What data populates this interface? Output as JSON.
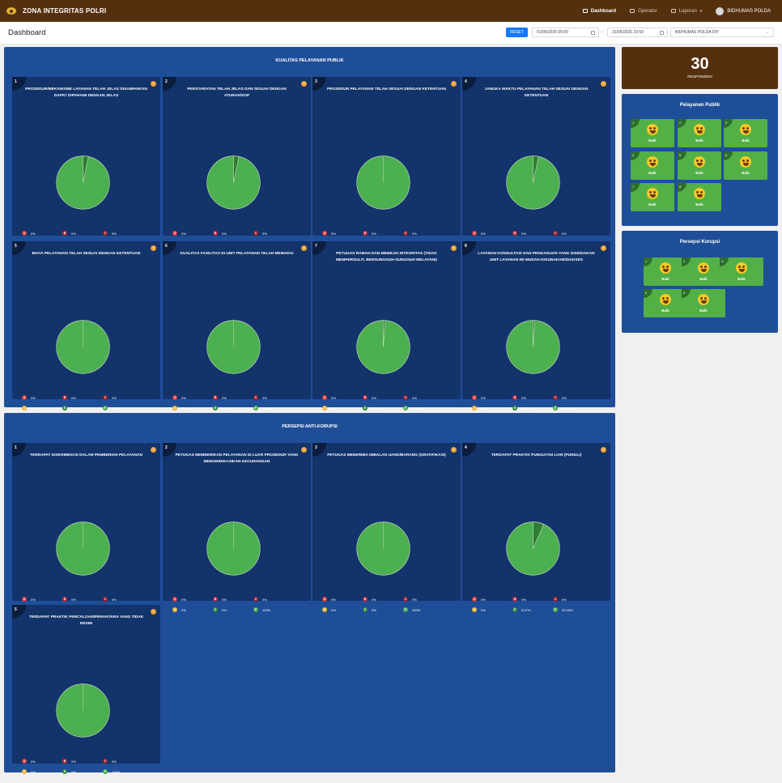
{
  "app": {
    "brand": "ZONA INTEGRITAS POLRI",
    "page_title": "Dashboard"
  },
  "nav": {
    "items": [
      {
        "label": "Dashboard"
      },
      {
        "label": "Operator"
      },
      {
        "label": "Laporan"
      }
    ],
    "user": "BIDHUMAS POLDA"
  },
  "filters": {
    "reset": "RESET",
    "start": "01/05/2025 00:00",
    "end": "31/05/2025 23:59",
    "unit": "BIDHUMAS POLDA DIY",
    "arrow": "→"
  },
  "colors": {
    "A": "#e23b3b",
    "B": "#c0283a",
    "C": "#9e1f2c",
    "D": "#f0b429",
    "E": "#2e8b3a",
    "F": "#4caf50",
    "pie_main": "#4caf50",
    "pie_minor": "#2e7d32"
  },
  "panel1": {
    "title": "KUALITAS PELAYANAN PUBLIK",
    "cards": [
      {
        "num": "1",
        "title": "PROSEDUR/MEKANISME LAYANAN TELAH JELAS DISAMPAIKAN DAPAT DIPAHAMI DENGAN JELAS",
        "legend": [
          "0%",
          "0%",
          "0%",
          "0%",
          "3.33%",
          "96.67%"
        ],
        "e": 3.33
      },
      {
        "num": "2",
        "title": "PERSYARATAN TELAH JELAS DAN SESUAI DENGAN ATURAN/SOP",
        "legend": [
          "0%",
          "0%",
          "0%",
          "0%",
          "3.33%",
          "96.67%"
        ],
        "e": 3.33
      },
      {
        "num": "3",
        "title": "PROSEDUR PELAYANAN TELAH SESUAI DENGAN KETENTUAN",
        "legend": [
          "0%",
          "0%",
          "0%",
          "0%",
          "0%",
          "100%"
        ],
        "e": 0
      },
      {
        "num": "4",
        "title": "JANGKA WAKTU PELAYANAN TELAH SESUAI DENGAN KETENTUAN",
        "legend": [
          "0%",
          "0%",
          "0%",
          "0%",
          "3.33%",
          "96.67%"
        ],
        "e": 3.33
      },
      {
        "num": "5",
        "title": "BIAYA PELAYANAN TELAH SESUAI DENGAN KETENTUAN",
        "legend": [
          "0%",
          "0%",
          "0%",
          "0%",
          "0%",
          "100%"
        ],
        "e": 0
      },
      {
        "num": "6",
        "title": "KUALITAS FASILITAS DI UNIT PELAYANAN TELAH MEMADAI",
        "legend": [
          "0%",
          "0%",
          "0%",
          "0%",
          "0%",
          "100%"
        ],
        "e": 0
      },
      {
        "num": "7",
        "title": "PETUGAS RAMAH DAN MEMILIKI INTEGRITAS (TIDAK MEMPERSULIT, BERSUNGGUH-SUNGGUH MELAYANI)",
        "legend": [
          "0%",
          "0%",
          "0%",
          "0%",
          "1.11%",
          "98.89%"
        ],
        "e": 1.11
      },
      {
        "num": "8",
        "title": "LAYANAN KONSULTASI DAN PENGADUAN YANG DISEDIAKAN UNIT LAYANAN INI MUDAH DIGUNAKAN/DIAKSES",
        "legend": [
          "0%",
          "0%",
          "0%",
          "0%",
          "1.11%",
          "98.89%"
        ],
        "e": 1.11
      }
    ]
  },
  "panel2": {
    "title": "PERSEPSI ANTI-KORUPSI",
    "cards": [
      {
        "num": "1",
        "title": "TERDAPAT DISKRIMINASI DALAM PEMBERIAN PELAYANAN",
        "legend": [
          "0%",
          "0%",
          "0%",
          "0%",
          "0%",
          "100%"
        ],
        "e": 0
      },
      {
        "num": "2",
        "title": "PETUGAS MEMBERIKAN PELAYANAN DI LUAR PROSEDUR YANG MENGINDIKASIKAN KECURANGAN",
        "legend": [
          "0%",
          "0%",
          "0%",
          "0%",
          "0%",
          "100%"
        ],
        "e": 0
      },
      {
        "num": "3",
        "title": "PETUGAS MENERIMA IMBALAN UANG/BARANG (GRATIFIKASI)",
        "legend": [
          "0%",
          "0%",
          "0%",
          "0%",
          "0%",
          "100%"
        ],
        "e": 0
      },
      {
        "num": "4",
        "title": "TERDAPAT PRAKTIK PUNGUTAN LIAR (PUNGLI)",
        "legend": [
          "0%",
          "0%",
          "0%",
          "0%",
          "6.67%",
          "93.33%"
        ],
        "e": 6.67
      },
      {
        "num": "5",
        "title": "TERDAPAT PRAKTIK PERCALOAN/PERANTARA YANG TIDAK RESMI",
        "legend": [
          "0%",
          "0%",
          "0%",
          "0%",
          "0%",
          "100%"
        ],
        "e": 0
      }
    ]
  },
  "legend_letters": [
    "A",
    "B",
    "C",
    "D",
    "E",
    "F"
  ],
  "info": "?",
  "responden": {
    "count": "30",
    "label": "RESPONDEN"
  },
  "side1": {
    "title": "Pelayanan Publik",
    "tiles": [
      "1",
      "2",
      "3",
      "4",
      "5",
      "6",
      "7",
      "8"
    ],
    "label": "Baik"
  },
  "side2": {
    "title": "Persepsi Korupsi",
    "tiles": [
      "1",
      "2",
      "3",
      "4",
      "5"
    ],
    "label": "Baik"
  }
}
